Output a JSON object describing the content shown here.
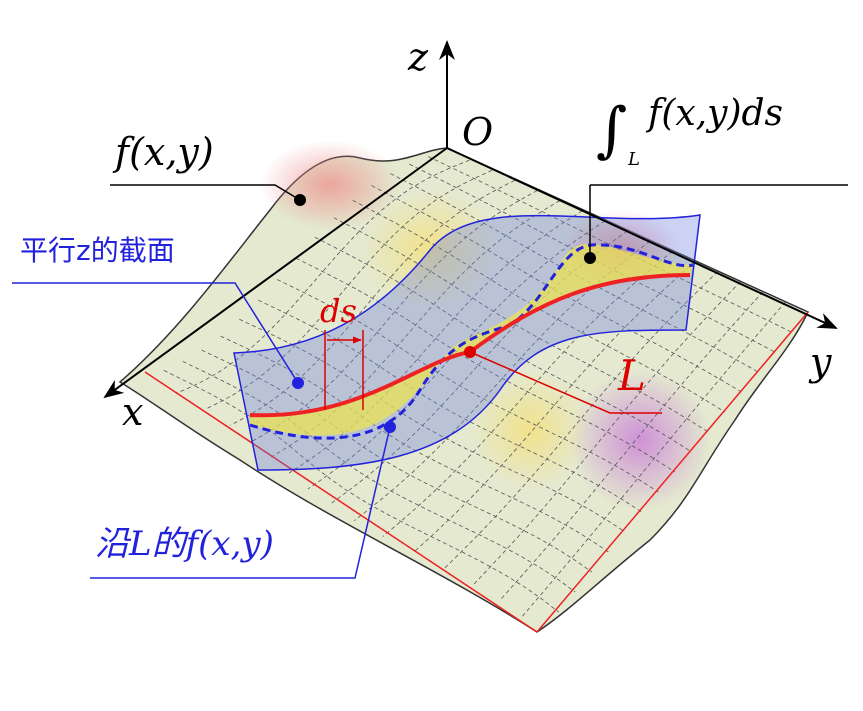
{
  "axes": {
    "z": "z",
    "origin": "O",
    "x": "x",
    "y": "y"
  },
  "labels": {
    "surface": "f(x,y)",
    "integral": {
      "symbol": "∫",
      "subscript": "L",
      "integrand": "f(x,y)ds"
    },
    "section": "平行z的截面",
    "ds": "ds",
    "curve": "L",
    "along": "沿L的f(x,y)"
  }
}
